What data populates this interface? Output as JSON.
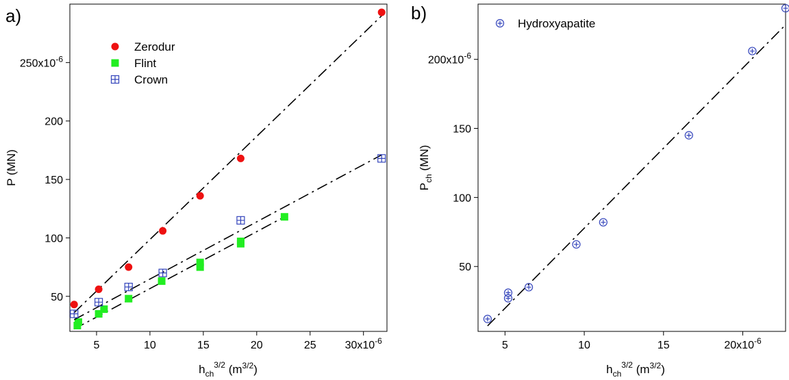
{
  "chart_data": [
    {
      "type": "scatter",
      "panel_label": "a)",
      "xlabel": {
        "main": "h",
        "sub": "ch",
        "sup": "3/2",
        "unit": " (m",
        "unit_sup": "3/2",
        "unit_close": ")"
      },
      "ylabel": "P (MN)",
      "xlim": [
        2.5e-06,
        3.22e-05
      ],
      "ylim": [
        2e-05,
        0.0003
      ],
      "xticks": [
        {
          "value": 5e-06,
          "label": "5"
        },
        {
          "value": 1e-05,
          "label": "10"
        },
        {
          "value": 1.5e-05,
          "label": "15"
        },
        {
          "value": 2e-05,
          "label": "20"
        },
        {
          "value": 2.5e-05,
          "label": "25"
        },
        {
          "value": 3e-05,
          "label": "30x10",
          "exp": "-6"
        }
      ],
      "yticks": [
        {
          "value": 5e-05,
          "label": "50"
        },
        {
          "value": 0.0001,
          "label": "100"
        },
        {
          "value": 0.00015,
          "label": "150"
        },
        {
          "value": 0.0002,
          "label": "200"
        },
        {
          "value": 0.00025,
          "label": "250x10",
          "exp": "-6"
        }
      ],
      "legend_position": "top-left",
      "series": [
        {
          "name": "Zerodur",
          "marker": "circle",
          "color": "#ee1111",
          "x": [
            2.9e-06,
            5.2e-06,
            8e-06,
            1.12e-05,
            1.47e-05,
            1.85e-05,
            3.17e-05
          ],
          "y": [
            4.3e-05,
            5.6e-05,
            7.5e-05,
            0.000106,
            0.000136,
            0.000168,
            0.000293
          ],
          "fit": {
            "x": [
              2.9e-06,
              3.17e-05
            ],
            "y": [
              3.6e-05,
              0.00029
            ],
            "dash": "16,6,3,6"
          }
        },
        {
          "name": "Flint",
          "marker": "square",
          "color": "#22ee22",
          "x": [
            3.2e-06,
            3.3e-06,
            5.2e-06,
            5.7e-06,
            8e-06,
            1.11e-05,
            1.47e-05,
            1.47e-05,
            1.85e-05,
            1.85e-05,
            2.26e-05
          ],
          "y": [
            2.5e-05,
            2.8e-05,
            3.5e-05,
            3.9e-05,
            4.8e-05,
            6.3e-05,
            7.5e-05,
            7.9e-05,
            9.5e-05,
            9.7e-05,
            0.000118
          ],
          "fit": {
            "x": [
              2.9e-06,
              2.26e-05
            ],
            "y": [
              2.2e-05,
              0.000118
            ],
            "dash": "16,6,3,6"
          }
        },
        {
          "name": "Crown",
          "marker": "boxplus",
          "color": "#3344bb",
          "x": [
            2.9e-06,
            5.2e-06,
            8e-06,
            1.12e-05,
            1.85e-05,
            3.17e-05
          ],
          "y": [
            3.5e-05,
            4.5e-05,
            5.8e-05,
            7e-05,
            0.000115,
            0.000168
          ],
          "fit": {
            "x": [
              2.9e-06,
              3.17e-05
            ],
            "y": [
              3e-05,
              0.000171
            ],
            "dash": "16,6,3,6"
          }
        }
      ]
    },
    {
      "type": "scatter",
      "panel_label": "b)",
      "xlabel": {
        "main": "h",
        "sub": "ch",
        "sup": "3/2",
        "unit": " (m",
        "unit_sup": "3/2",
        "unit_close": ")"
      },
      "ylabel": {
        "main": "P",
        "sub": "ch",
        "rest": " (MN)"
      },
      "xlim": [
        3.3e-06,
        2.27e-05
      ],
      "ylim": [
        3e-06,
        0.00024
      ],
      "xticks": [
        {
          "value": 5e-06,
          "label": "5"
        },
        {
          "value": 1e-05,
          "label": "10"
        },
        {
          "value": 1.5e-05,
          "label": "15"
        },
        {
          "value": 2e-05,
          "label": "20x10",
          "exp": "-6"
        }
      ],
      "yticks": [
        {
          "value": 5e-05,
          "label": "50"
        },
        {
          "value": 0.0001,
          "label": "100"
        },
        {
          "value": 0.00015,
          "label": "150"
        },
        {
          "value": 0.0002,
          "label": "200x10",
          "exp": "-6"
        }
      ],
      "legend_position": "top-left",
      "series": [
        {
          "name": "Hydroxyapatite",
          "marker": "circleplus",
          "color": "#3344bb",
          "x": [
            3.9e-06,
            5.2e-06,
            5.2e-06,
            6.5e-06,
            9.5e-06,
            1.12e-05,
            1.66e-05,
            2.06e-05,
            2.27e-05
          ],
          "y": [
            1.2e-05,
            2.7e-05,
            3.1e-05,
            3.5e-05,
            6.6e-05,
            8.2e-05,
            0.000145,
            0.000206,
            0.000237
          ],
          "fit": {
            "x": [
              3.9e-06,
              2.27e-05
            ],
            "y": [
              7e-06,
              0.000225
            ],
            "dash": "16,6,3,6"
          }
        }
      ]
    }
  ]
}
